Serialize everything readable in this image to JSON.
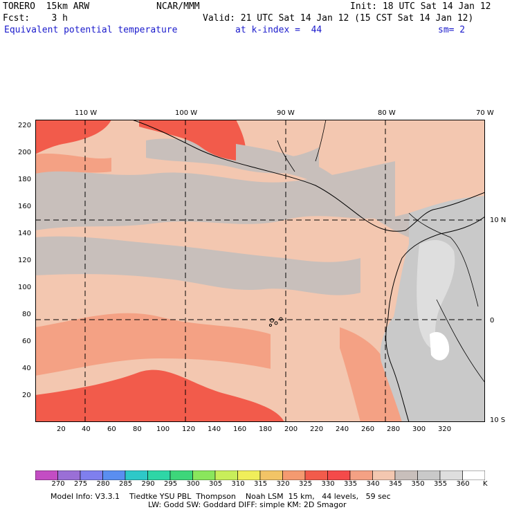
{
  "header": {
    "model": "TORERO  15km ARW",
    "org": "NCAR/MMM",
    "init": "Init: 18 UTC Sat 14 Jan 12",
    "fcst": "Fcst:    3 h",
    "valid": "Valid: 21 UTC Sat 14 Jan 12 (15 CST Sat 14 Jan 12)",
    "field": "Equivalent potential temperature",
    "level": "at k-index =  44",
    "smooth": "sm= 2"
  },
  "map": {
    "lon_labels": [
      "110 W",
      "100 W",
      "90 W",
      "80 W",
      "70 W"
    ],
    "lat_labels": [
      "10 N",
      "0",
      "10 S"
    ],
    "y_ticks": [
      "220",
      "200",
      "180",
      "160",
      "140",
      "120",
      "100",
      "80",
      "60",
      "40",
      "20"
    ],
    "x_ticks": [
      "20",
      "40",
      "60",
      "80",
      "100",
      "120",
      "140",
      "160",
      "180",
      "200",
      "220",
      "240",
      "260",
      "280",
      "300",
      "320"
    ]
  },
  "colorbar": {
    "labels": [
      "270",
      "275",
      "280",
      "285",
      "290",
      "295",
      "300",
      "305",
      "310",
      "315",
      "320",
      "325",
      "330",
      "335",
      "340",
      "345",
      "350",
      "355",
      "360"
    ],
    "unit": "K",
    "colors": [
      "#c34dc3",
      "#9a6fd6",
      "#7f7fee",
      "#5a8ef0",
      "#2ec8c8",
      "#2ed6a6",
      "#3dd67a",
      "#8ae65c",
      "#c8ee5a",
      "#f0ee5a",
      "#f2c466",
      "#f49a70",
      "#f25b4b",
      "#f44a4a",
      "#f4a184",
      "#f3c7b0",
      "#c8bfbb",
      "#c9c9c9",
      "#dedede",
      "#ffffff"
    ]
  },
  "info": {
    "line1": "Model Info: V3.3.1    Tiedtke YSU PBL  Thompson    Noah LSM  15 km,   44 levels,   59 sec",
    "line2": "LW: Godd SW: Goddard DIFF: simple KM: 2D Smagor"
  }
}
